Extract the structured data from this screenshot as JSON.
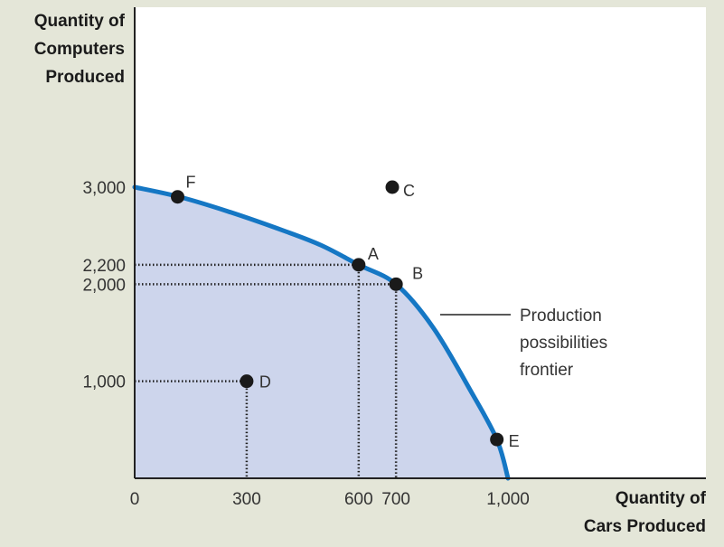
{
  "chart_data": {
    "type": "area",
    "ylabel": [
      "Quantity of",
      "Computers",
      "Produced"
    ],
    "xlabel": [
      "Quantity of",
      "Cars Produced"
    ],
    "x_ticks": [
      {
        "value": 0,
        "label": "0"
      },
      {
        "value": 300,
        "label": "300"
      },
      {
        "value": 600,
        "label": "600"
      },
      {
        "value": 700,
        "label": "700"
      },
      {
        "value": 1000,
        "label": "1,000"
      }
    ],
    "y_ticks": [
      {
        "value": 1000,
        "label": "1,000"
      },
      {
        "value": 2000,
        "label": "2,000"
      },
      {
        "value": 2200,
        "label": "2,200"
      },
      {
        "value": 3000,
        "label": "3,000"
      }
    ],
    "xlim": [
      0,
      1530
    ],
    "ylim": [
      0,
      3000
    ],
    "frontier": {
      "label": [
        "Production",
        "possibilities",
        "frontier"
      ],
      "x": [
        0,
        120,
        250,
        400,
        500,
        600,
        700,
        800,
        900,
        970,
        1000
      ],
      "y": [
        3000,
        2900,
        2750,
        2550,
        2400,
        2200,
        2000,
        1550,
        900,
        400,
        0
      ]
    },
    "points": [
      {
        "label": "F",
        "x": 115,
        "y": 2900
      },
      {
        "label": "C",
        "x": 690,
        "y": 3000
      },
      {
        "label": "A",
        "x": 600,
        "y": 2200
      },
      {
        "label": "B",
        "x": 700,
        "y": 2000
      },
      {
        "label": "D",
        "x": 300,
        "y": 1000
      },
      {
        "label": "E",
        "x": 970,
        "y": 400
      }
    ],
    "guides": [
      {
        "x": 600,
        "y": 2200
      },
      {
        "x": 700,
        "y": 2000
      },
      {
        "x": 300,
        "y": 1000
      }
    ],
    "colors": {
      "background": "#e4e6d8",
      "plot_bg": "#ffffff",
      "fill": "#cdd5ec",
      "frontier": "#1577c4",
      "point": "#1a1a1a"
    }
  }
}
